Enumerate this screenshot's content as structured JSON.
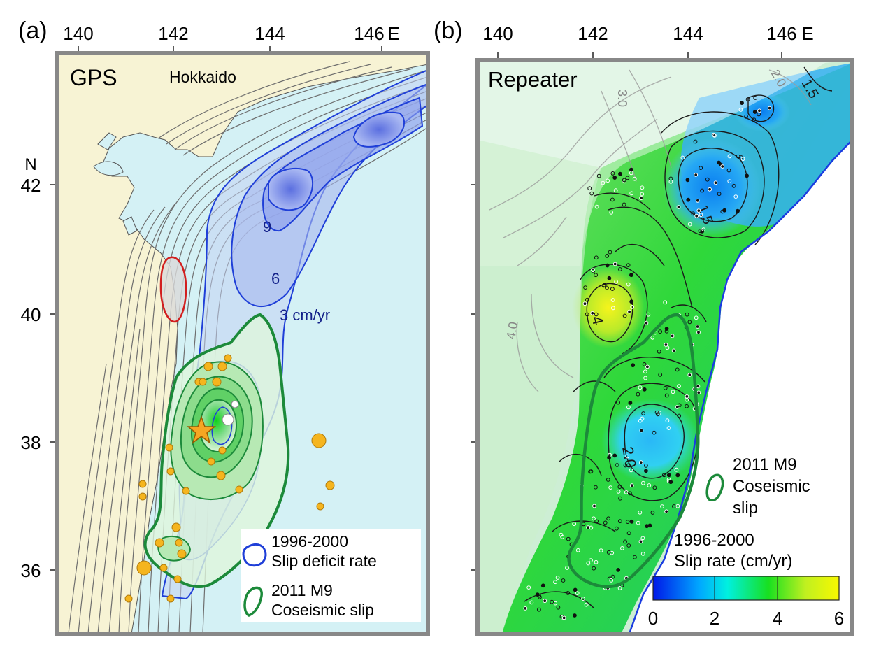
{
  "panel_a": {
    "label": "(a)",
    "title": "GPS",
    "region_label": "Hokkaido",
    "lon_ticks": [
      "140",
      "142",
      "144",
      "146"
    ],
    "lon_suffix": "E",
    "lat_ticks": [
      "42",
      "40",
      "38",
      "36"
    ],
    "lat_suffix": "N",
    "contour_labels": {
      "c9": "9",
      "c6": "6",
      "c3": "3 cm/yr"
    },
    "legend": {
      "deficit_line1": "1996-2000",
      "deficit_line2": "Slip deficit  rate",
      "coseismic_line1": "2011 M9",
      "coseismic_line2": "Coseismic slip"
    }
  },
  "panel_b": {
    "label": "(b)",
    "title": "Repeater",
    "lon_ticks": [
      "140",
      "142",
      "144",
      "146"
    ],
    "lon_suffix": "E",
    "contour_labels": {
      "c15a": "1.5",
      "c15b": "1.5",
      "c20": "2.0",
      "c40": "4",
      "g30": "3.0",
      "g20": "2.0",
      "g40": "4.0"
    },
    "legend": {
      "coseismic_line1": "2011 M9",
      "coseismic_line2": "Coseismic",
      "coseismic_line3": "slip",
      "rate_line1": "1996-2000",
      "rate_line2": "Slip rate (cm/yr)"
    },
    "colorbar": {
      "ticks": [
        "0",
        "2",
        "4",
        "6"
      ],
      "colors": [
        "#0018e8",
        "#00a8ff",
        "#00f0e0",
        "#18e020",
        "#c0f020",
        "#f8f800"
      ]
    }
  },
  "colors": {
    "land": "#f7f3d4",
    "sea": "#d4f1f5",
    "deficit_fill": "#6f86e8",
    "deficit_line": "#1f3fd8",
    "coseismic_line": "#1c8a3a",
    "coseismic_fill": "#23c23a",
    "aftershock": "#f5b51e",
    "frame": "#888888"
  }
}
